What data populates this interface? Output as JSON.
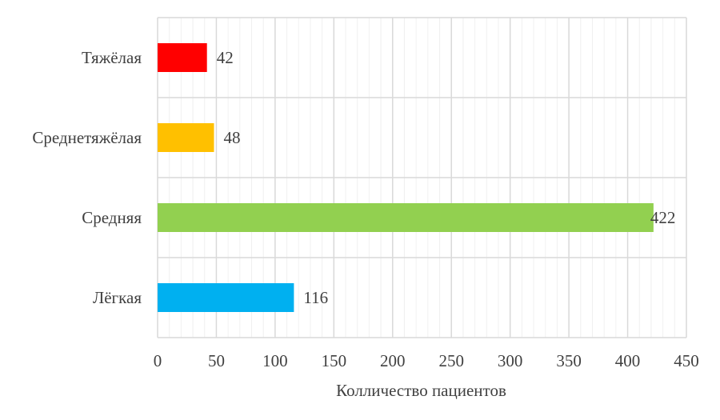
{
  "chart_data": {
    "type": "bar",
    "orientation": "horizontal",
    "categories": [
      "Тяжёлая",
      "Среднетяжёлая",
      "Средняя",
      "Лёгкая"
    ],
    "values": [
      42,
      48,
      422,
      116
    ],
    "colors": [
      "#ff0000",
      "#ffc000",
      "#92d050",
      "#00b0f0"
    ],
    "xlabel": "Колличество пациентов",
    "ylabel": "",
    "title": "",
    "xlim": [
      0,
      450
    ],
    "x_ticks": [
      0,
      50,
      100,
      150,
      200,
      250,
      300,
      350,
      400,
      450
    ],
    "minor_tick_step": 10,
    "grid": true,
    "legend": "none",
    "data_labels": true
  }
}
